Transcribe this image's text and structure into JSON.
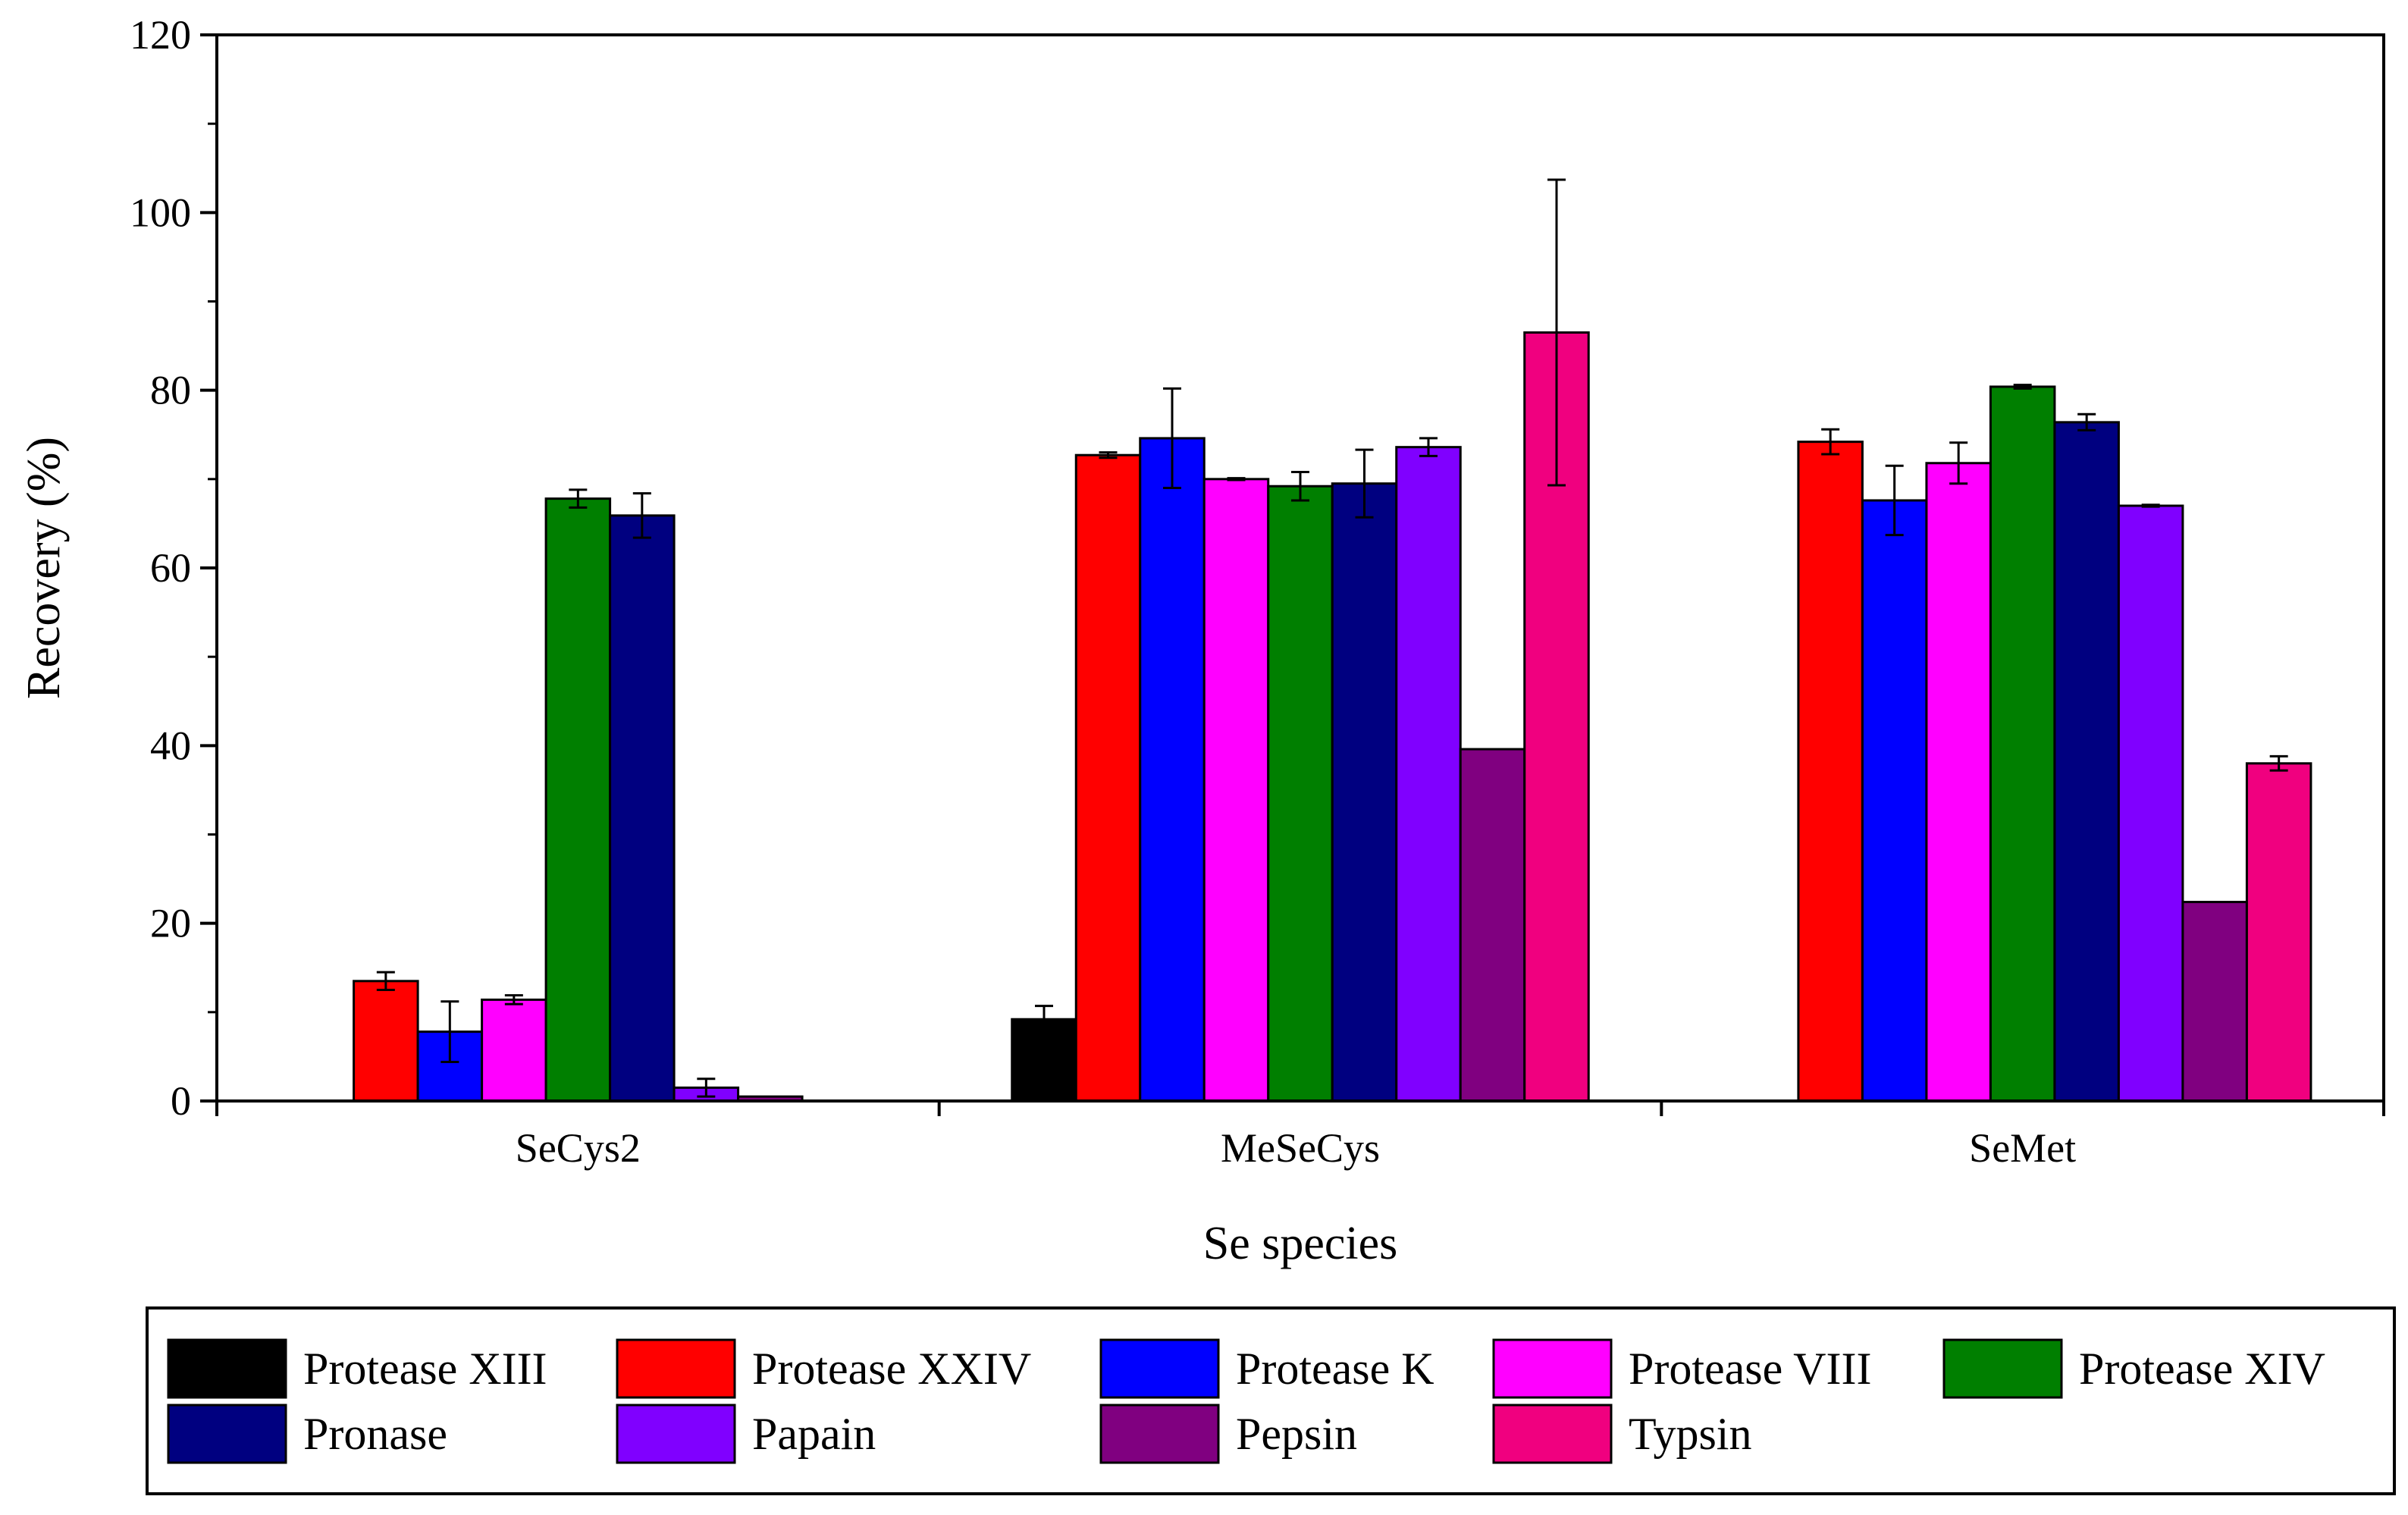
{
  "chart_data": {
    "type": "bar",
    "title": "",
    "xlabel": "Se species",
    "ylabel": "Recovery (%)",
    "ylim": [
      0,
      120
    ],
    "yticks": [
      "0",
      "20",
      "40",
      "60",
      "80",
      "100",
      "120"
    ],
    "categories": [
      "SeCys2",
      "MeSeCys",
      "SeMet"
    ],
    "legend_position": "bottom",
    "series": [
      {
        "name": "Protease XIII",
        "color": "#000000",
        "values": [
          null,
          9.2,
          null
        ],
        "errors": [
          null,
          1.5,
          null
        ]
      },
      {
        "name": "Protease XXIV",
        "color": "#ff0000",
        "values": [
          13.5,
          72.7,
          74.2
        ],
        "errors": [
          1.0,
          0.3,
          1.4
        ]
      },
      {
        "name": "Protease K",
        "color": "#0000ff",
        "values": [
          7.8,
          74.6,
          67.6
        ],
        "errors": [
          3.4,
          5.6,
          3.9
        ]
      },
      {
        "name": "Protease VIII",
        "color": "#ff00ff",
        "values": [
          11.4,
          70.0,
          71.8
        ],
        "errors": [
          0.5,
          0.1,
          2.3
        ]
      },
      {
        "name": "Protease XIV",
        "color": "#007f00",
        "values": [
          67.8,
          69.2,
          80.4
        ],
        "errors": [
          1.0,
          1.6,
          0.2
        ]
      },
      {
        "name": "Pronase",
        "color": "#000080",
        "values": [
          65.9,
          69.5,
          76.4
        ],
        "errors": [
          2.5,
          3.8,
          0.9
        ]
      },
      {
        "name": "Papain",
        "color": "#8000ff",
        "values": [
          1.5,
          73.6,
          67.0
        ],
        "errors": [
          1.0,
          1.0,
          0.1
        ]
      },
      {
        "name": "Pepsin",
        "color": "#800080",
        "values": [
          0.5,
          39.6,
          22.4
        ],
        "errors": [
          null,
          null,
          null
        ]
      },
      {
        "name": "Typsin",
        "color": "#f0007f",
        "values": [
          null,
          86.5,
          38.0
        ],
        "errors": [
          null,
          17.2,
          0.8
        ]
      }
    ]
  }
}
